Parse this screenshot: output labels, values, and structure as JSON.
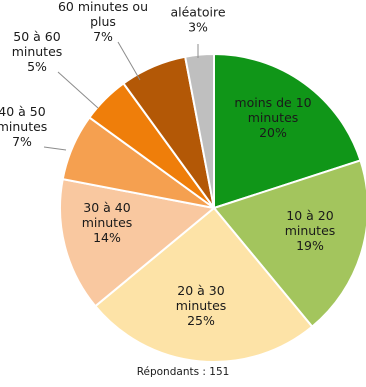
{
  "chart_data": {
    "type": "pie",
    "slices": [
      {
        "label": [
          "moins de 10",
          "minutes",
          "20%"
        ],
        "value": 20,
        "color": "#109618"
      },
      {
        "label": [
          "10 à 20",
          "minutes",
          "19%"
        ],
        "value": 19,
        "color": "#a3c55d"
      },
      {
        "label": [
          "20 à 30",
          "minutes",
          "25%"
        ],
        "value": 25,
        "color": "#fde3a7"
      },
      {
        "label": [
          "30 à 40",
          "minutes",
          "14%"
        ],
        "value": 14,
        "color": "#f9c8a0"
      },
      {
        "label": [
          "40 à 50",
          "minutes",
          "7%"
        ],
        "value": 7,
        "color": "#f5a050"
      },
      {
        "label": [
          "50 à 60",
          "minutes",
          "5%"
        ],
        "value": 5,
        "color": "#ef7e0a"
      },
      {
        "label": [
          "60 minutes ou",
          "plus",
          "7%"
        ],
        "value": 7,
        "color": "#b35806"
      },
      {
        "label": [
          "aléatoire",
          "3%"
        ],
        "value": 3,
        "color": "#bfbfbf"
      }
    ],
    "note": "Répondants : 151",
    "start": "12 o'clock",
    "direction": "clockwise"
  }
}
